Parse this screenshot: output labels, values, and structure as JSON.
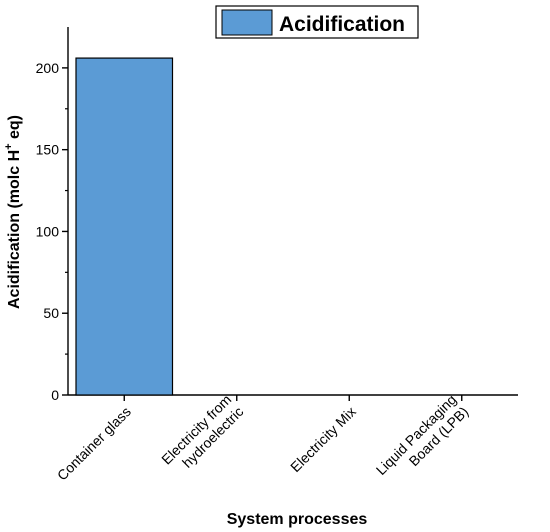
{
  "chart_data": {
    "type": "bar",
    "title": "",
    "categories": [
      "Container glass",
      "Electricity from hydroelectric",
      "Electricity Mix",
      "Liquid Packaging Board (LPB)"
    ],
    "category_lines": [
      [
        "Container glass"
      ],
      [
        "Electricity from",
        "hydroelectric"
      ],
      [
        "Electricity Mix"
      ],
      [
        "Liquid Packaging",
        "Board (LPB)"
      ]
    ],
    "series": [
      {
        "name": "Acidification",
        "values": [
          206,
          0,
          0,
          0
        ],
        "color": "#5b9bd5"
      }
    ],
    "xlabel": "System processes",
    "ylabel": {
      "main": "Acidification (molc H",
      "superscript": "+",
      "suffix": " eq)"
    },
    "ylim": [
      0,
      225
    ],
    "yticks": [
      0,
      50,
      100,
      150,
      200
    ],
    "grid": false,
    "legend": "top-center"
  }
}
